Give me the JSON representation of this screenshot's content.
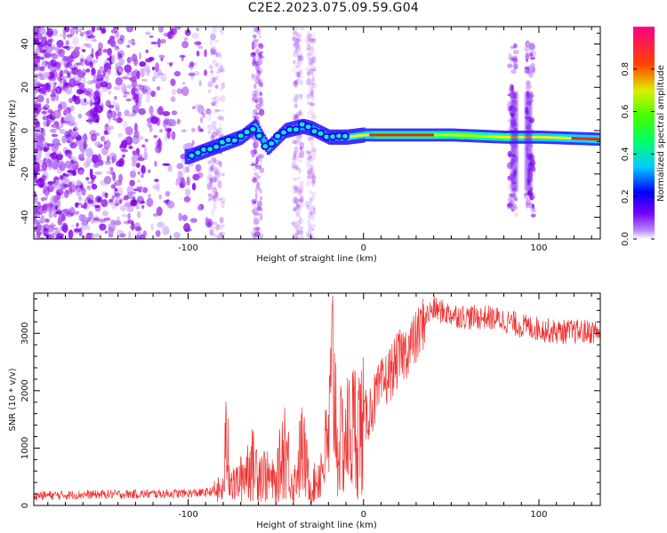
{
  "title": "C2E2.2023.075.09.59.G04",
  "chart_data": [
    {
      "type": "heatmap",
      "xlabel": "Height of straight line (km)",
      "ylabel": "Frequency (Hz)",
      "xlim": [
        -188,
        135
      ],
      "ylim": [
        -50,
        48
      ],
      "xticks": [
        -100,
        0,
        100
      ],
      "yticks": [
        -40,
        -20,
        0,
        20,
        40
      ],
      "colorbar": {
        "label": "Normalized spectral amplitude",
        "range": [
          0.0,
          1.0
        ],
        "ticks": [
          "0.0",
          "0.2",
          "0.4",
          "0.6",
          "0.8"
        ],
        "colormap": [
          "#ffffff",
          "#8800ff",
          "#0000ff",
          "#00ffff",
          "#00ff00",
          "#ffff00",
          "#ff0000",
          "#ff0088"
        ]
      },
      "ridge": {
        "description_points_x": [
          -100,
          -90,
          -80,
          -70,
          -62,
          -55,
          -45,
          -35,
          -30,
          -20,
          -10,
          0,
          20,
          50,
          80,
          100,
          135
        ],
        "description_points_y": [
          -12,
          -9,
          -6,
          -3,
          2,
          -8,
          0,
          2,
          1,
          -3,
          -3,
          -2,
          -2,
          -2,
          -3,
          -3,
          -4
        ]
      }
    },
    {
      "type": "line",
      "xlabel": "Height of straight line (km)",
      "ylabel": "SNR (10 * v/v)",
      "xlim": [
        -188,
        135
      ],
      "ylim": [
        0,
        3700
      ],
      "xticks": [
        -100,
        0,
        100
      ],
      "yticks": [
        0,
        1000,
        2000,
        3000
      ],
      "series": [
        {
          "color": "#ee3333",
          "x": [
            -188,
            -150,
            -120,
            -100,
            -90,
            -80,
            -78,
            -75,
            -70,
            -65,
            -60,
            -55,
            -50,
            -45,
            -40,
            -35,
            -30,
            -25,
            -20,
            -17,
            -15,
            -10,
            -5,
            0,
            10,
            20,
            30,
            35,
            40,
            50,
            60,
            70,
            80,
            90,
            100,
            110,
            120,
            135
          ],
          "y": [
            180,
            200,
            210,
            220,
            230,
            300,
            1400,
            350,
            500,
            800,
            700,
            550,
            400,
            1200,
            350,
            1100,
            300,
            600,
            1200,
            2800,
            1100,
            1300,
            1500,
            1500,
            2100,
            2600,
            2950,
            3300,
            3450,
            3350,
            3300,
            3300,
            3250,
            3150,
            3100,
            3050,
            3050,
            3050
          ]
        }
      ]
    }
  ]
}
